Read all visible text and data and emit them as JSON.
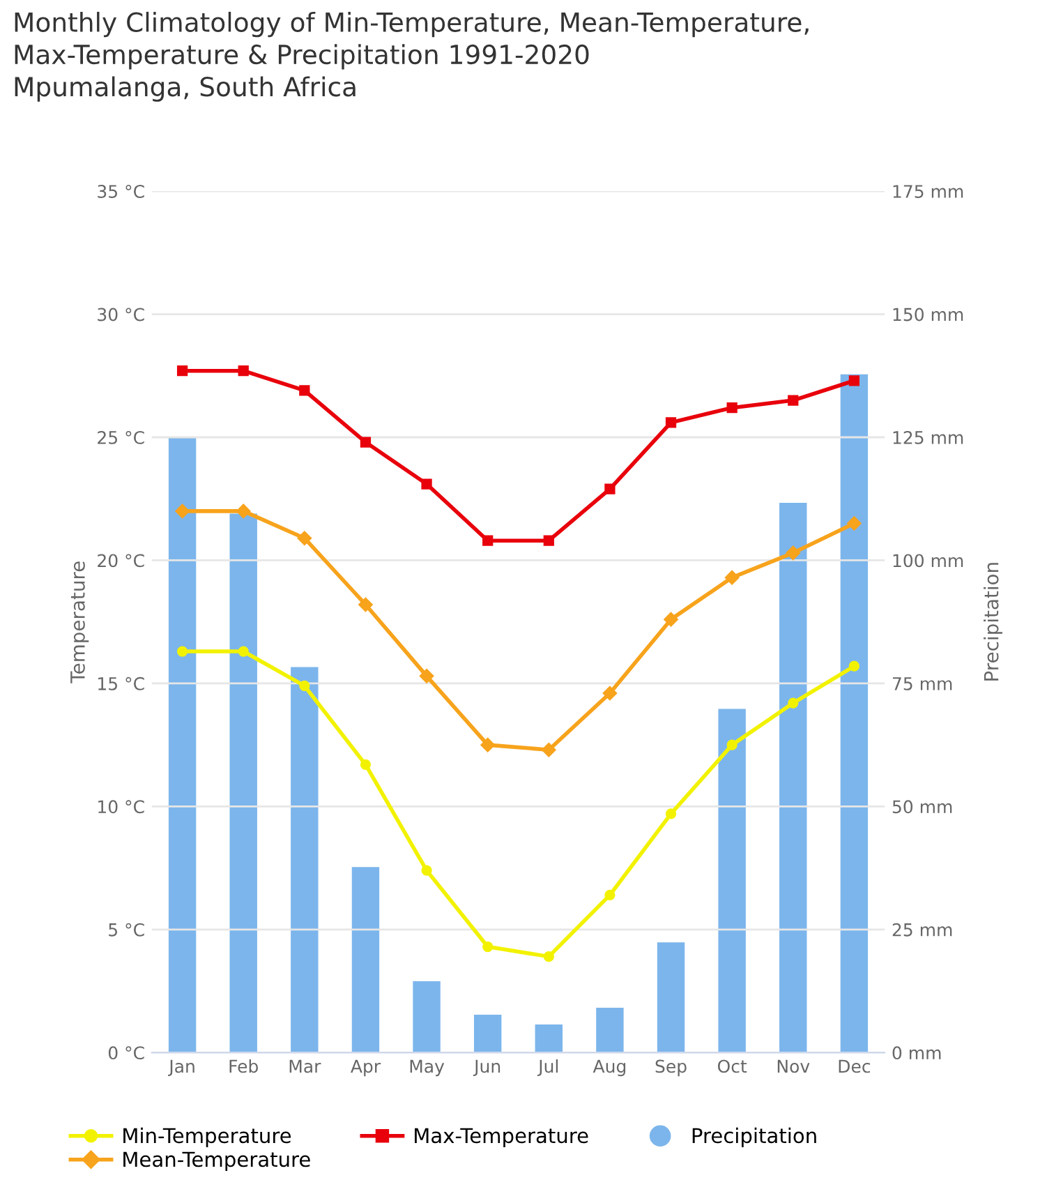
{
  "chart_data": {
    "type": "line",
    "title": "Monthly Climatology of Min-Temperature, Mean-Temperature,\nMax-Temperature & Precipitation 1991-2020\nMpumalanga, South Africa",
    "ylabel": "Temperature",
    "y2label": "Precipitation",
    "categories": [
      "Jan",
      "Feb",
      "Mar",
      "Apr",
      "May",
      "Jun",
      "Jul",
      "Aug",
      "Sep",
      "Oct",
      "Nov",
      "Dec"
    ],
    "series": [
      {
        "name": "Precipitation",
        "type": "bar",
        "axis": "y2",
        "color": "#7cb5ec",
        "values": [
          125,
          109.5,
          78.3,
          37.7,
          14.5,
          7.7,
          5.7,
          9.1,
          22.4,
          69.8,
          111.7,
          137.8
        ]
      },
      {
        "name": "Min-Temperature",
        "marker": "circle",
        "color": "#f2f200",
        "values": [
          16.3,
          16.3,
          14.9,
          11.7,
          7.4,
          4.3,
          3.9,
          6.4,
          9.7,
          12.5,
          14.2,
          15.7
        ]
      },
      {
        "name": "Mean-Temperature",
        "marker": "diamond",
        "color": "#f7a31c",
        "values": [
          22.0,
          22.0,
          20.9,
          18.2,
          15.3,
          12.5,
          12.3,
          14.6,
          17.6,
          19.3,
          20.3,
          21.5
        ]
      },
      {
        "name": "Max-Temperature",
        "marker": "square",
        "color": "#e8000b",
        "values": [
          27.7,
          27.7,
          26.9,
          24.8,
          23.1,
          20.8,
          20.8,
          22.9,
          25.6,
          26.2,
          26.5,
          27.3
        ]
      }
    ],
    "ylim": [
      0,
      35
    ],
    "yticks": [
      {
        "value": 0,
        "label": "0 °C"
      },
      {
        "value": 5,
        "label": "5 °C"
      },
      {
        "value": 10,
        "label": "10 °C"
      },
      {
        "value": 15,
        "label": "15 °C"
      },
      {
        "value": 20,
        "label": "20 °C"
      },
      {
        "value": 25,
        "label": "25 °C"
      },
      {
        "value": 30,
        "label": "30 °C"
      },
      {
        "value": 35,
        "label": "35 °C"
      }
    ],
    "y2lim": [
      0,
      175
    ],
    "y2ticks": [
      {
        "value": 0,
        "label": "0 mm"
      },
      {
        "value": 25,
        "label": "25 mm"
      },
      {
        "value": 50,
        "label": "50 mm"
      },
      {
        "value": 75,
        "label": "75 mm"
      },
      {
        "value": 100,
        "label": "100 mm"
      },
      {
        "value": 125,
        "label": "125 mm"
      },
      {
        "value": 150,
        "label": "150 mm"
      },
      {
        "value": 175,
        "label": "175 mm"
      }
    ],
    "grid": "y",
    "legend": "bottom",
    "line_style": "solid"
  }
}
